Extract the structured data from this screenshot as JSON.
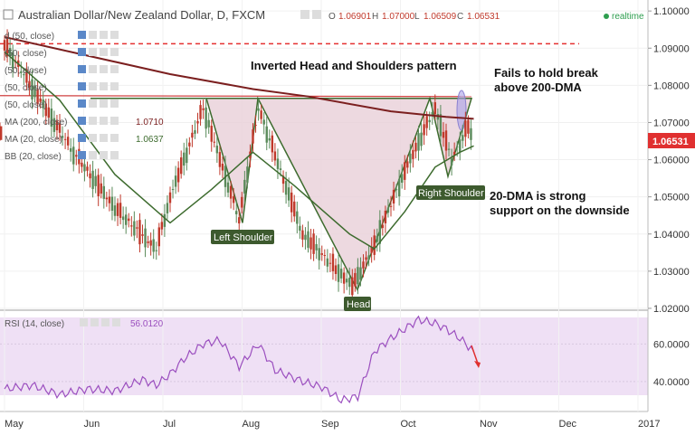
{
  "window": {
    "title": "Australian Dollar/New Zealand Dollar, D, FXCM",
    "realtime_label": "realtime"
  },
  "ohlc": {
    "o_label": "O",
    "o_value": "1.06901",
    "h_label": "H",
    "h_value": "1.07000",
    "l_label": "L",
    "l_value": "1.06509",
    "c_label": "C",
    "c_value": "1.06531"
  },
  "indicators": [
    {
      "label": "d (50, close)",
      "value": ""
    },
    {
      "label": "(50, close)",
      "value": ""
    },
    {
      "label": "(50, close)",
      "value": ""
    },
    {
      "label": "(50, close)",
      "value": ""
    },
    {
      "label": "(50, close)",
      "value": ""
    },
    {
      "label": "MA (200, close)",
      "value": "1.0710"
    },
    {
      "label": "MA (20, close)",
      "value": "1.0637"
    },
    {
      "label": "BB (20, close)",
      "value": ""
    }
  ],
  "rsi_legend": {
    "label": "RSI (14, close)",
    "value": "56.0120"
  },
  "price_badge": "1.06531",
  "annotations": {
    "pattern": "Inverted Head and Shoulders pattern",
    "fails_line1": "Fails to hold break",
    "fails_line2": "above 200-DMA",
    "support_line1": "20-DMA is strong",
    "support_line2": "support on the downside",
    "left_shoulder": "Left Shoulder",
    "head": "Head",
    "right_shoulder": "Right Shoulder"
  },
  "colors": {
    "up": "#5a8a5a",
    "down": "#c0392b",
    "ma200": "#7b1f1f",
    "ma20": "#3d6b2e",
    "pattern_fill": "#e8d0d8",
    "rsi_line": "#9b4fbf",
    "rsi_band": "#efe0f5",
    "dashed": "#e53030",
    "badge": "#e03030",
    "label_bg": "#3d5a2e"
  },
  "chart_data": {
    "type": "candlestick",
    "instrument": "Australian Dollar/New Zealand Dollar, D, FXCM",
    "x_months": [
      "May",
      "Jun",
      "Jul",
      "Aug",
      "Sep",
      "Oct",
      "Nov",
      "Dec",
      "2017"
    ],
    "y_ticks": [
      "1.10000",
      "1.09000",
      "1.08000",
      "1.07000",
      "1.06000",
      "1.05000",
      "1.04000",
      "1.03000",
      "1.02000"
    ],
    "ylim": [
      1.0195,
      1.1015
    ],
    "rsi_ticks": [
      "60.0000",
      "40.0000"
    ],
    "rsi_ylim": [
      24,
      78
    ],
    "last_close": 1.06531,
    "ohlc_points": [
      {
        "day": 0,
        "o": 1.088,
        "h": 1.096,
        "l": 1.083,
        "c": 1.091
      },
      {
        "day": 25,
        "o": 1.07,
        "h": 1.076,
        "l": 1.058,
        "c": 1.062
      },
      {
        "day": 40,
        "o": 1.052,
        "h": 1.056,
        "l": 1.042,
        "c": 1.047
      },
      {
        "day": 55,
        "o": 1.04,
        "h": 1.046,
        "l": 1.032,
        "c": 1.036
      },
      {
        "day": 60,
        "o": 1.039,
        "h": 1.052,
        "l": 1.037,
        "c": 1.05
      },
      {
        "day": 72,
        "o": 1.07,
        "h": 1.077,
        "l": 1.066,
        "c": 1.074
      },
      {
        "day": 85,
        "o": 1.048,
        "h": 1.054,
        "l": 1.041,
        "c": 1.044
      },
      {
        "day": 92,
        "o": 1.07,
        "h": 1.077,
        "l": 1.068,
        "c": 1.074
      },
      {
        "day": 108,
        "o": 1.048,
        "h": 1.052,
        "l": 1.038,
        "c": 1.04
      },
      {
        "day": 126,
        "o": 1.028,
        "h": 1.033,
        "l": 1.024,
        "c": 1.026
      },
      {
        "day": 134,
        "o": 1.029,
        "h": 1.038,
        "l": 1.027,
        "c": 1.037
      },
      {
        "day": 145,
        "o": 1.052,
        "h": 1.059,
        "l": 1.05,
        "c": 1.057
      },
      {
        "day": 156,
        "o": 1.071,
        "h": 1.076,
        "l": 1.069,
        "c": 1.074
      },
      {
        "day": 162,
        "o": 1.064,
        "h": 1.068,
        "l": 1.057,
        "c": 1.06
      },
      {
        "day": 168,
        "o": 1.064,
        "h": 1.071,
        "l": 1.062,
        "c": 1.069
      },
      {
        "day": 170,
        "o": 1.069,
        "h": 1.07,
        "l": 1.0651,
        "c": 1.0653
      }
    ],
    "series": [
      {
        "name": "MA (200, close)",
        "points": [
          [
            0,
            1.093
          ],
          [
            30,
            1.088
          ],
          [
            60,
            1.083
          ],
          [
            90,
            1.079
          ],
          [
            110,
            1.077
          ],
          [
            140,
            1.073
          ],
          [
            160,
            1.0715
          ],
          [
            170,
            1.071
          ]
        ]
      },
      {
        "name": "MA (20, close)",
        "points": [
          [
            0,
            1.089
          ],
          [
            20,
            1.076
          ],
          [
            40,
            1.056
          ],
          [
            60,
            1.043
          ],
          [
            75,
            1.052
          ],
          [
            90,
            1.062
          ],
          [
            105,
            1.053
          ],
          [
            125,
            1.04
          ],
          [
            134,
            1.036
          ],
          [
            145,
            1.046
          ],
          [
            156,
            1.058
          ],
          [
            165,
            1.062
          ],
          [
            170,
            1.0637
          ]
        ]
      },
      {
        "name": "RSI (14, close)",
        "points": [
          [
            0,
            36
          ],
          [
            10,
            38
          ],
          [
            20,
            33
          ],
          [
            30,
            36
          ],
          [
            40,
            35
          ],
          [
            50,
            41
          ],
          [
            55,
            38
          ],
          [
            60,
            44
          ],
          [
            65,
            52
          ],
          [
            72,
            60
          ],
          [
            78,
            62
          ],
          [
            85,
            48
          ],
          [
            92,
            60
          ],
          [
            98,
            46
          ],
          [
            108,
            40
          ],
          [
            115,
            37
          ],
          [
            122,
            30
          ],
          [
            128,
            32
          ],
          [
            134,
            56
          ],
          [
            140,
            63
          ],
          [
            145,
            68
          ],
          [
            150,
            73
          ],
          [
            156,
            71
          ],
          [
            160,
            68
          ],
          [
            165,
            63
          ],
          [
            170,
            56
          ]
        ]
      }
    ],
    "pattern_levels": {
      "neckline": 1.0765,
      "left_shoulder": 1.043,
      "head": 1.025,
      "right_shoulder": 1.0555
    },
    "resistance_dashed": 1.0912
  }
}
